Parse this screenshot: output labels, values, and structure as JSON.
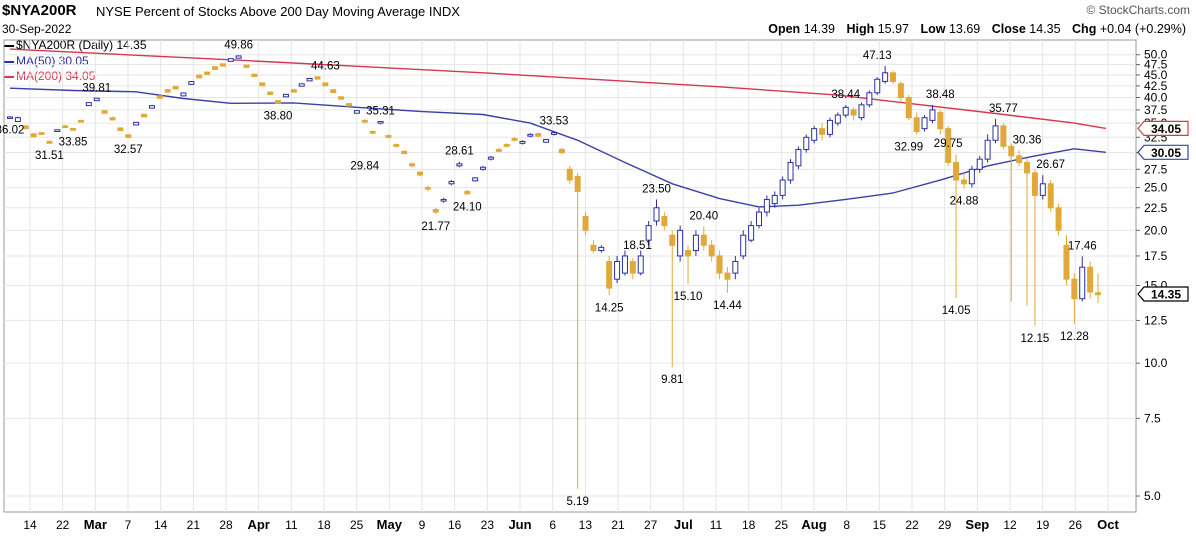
{
  "header": {
    "symbol": "$NYA200R",
    "description": "NYSE Percent of Stocks Above 200 Day Moving Average",
    "exchange": "INDX",
    "date": "30-Sep-2022",
    "brand": "© StockCharts.com",
    "open_label": "Open",
    "open": "14.39",
    "high_label": "High",
    "high": "15.97",
    "low_label": "Low",
    "low": "13.69",
    "close_label": "Close",
    "close": "14.35",
    "chg_label": "Chg",
    "chg": "+0.04 (+0.29%)"
  },
  "legend": {
    "main": "$NYA200R (Daily) 14.35",
    "ma50": "MA(50) 30.05",
    "ma200": "MA(200) 34.05"
  },
  "colors": {
    "up": "#2b2fa6",
    "down": "#e0a93a",
    "ma50": "#3b3fa8",
    "ma200": "#d6364f",
    "grid": "#e6e6e6"
  },
  "chart_data": {
    "type": "candlestick",
    "y_scale": "log",
    "ylim": [
      4.6,
      54
    ],
    "y_ticks": [
      "5.0",
      "7.5",
      "10.0",
      "12.5",
      "15.0",
      "17.5",
      "20.0",
      "22.5",
      "25.0",
      "27.5",
      "30.0",
      "32.5",
      "35.0",
      "37.5",
      "40.0",
      "42.5",
      "45.0",
      "47.5",
      "50.0"
    ],
    "x_ticks": [
      "14",
      "22",
      "Mar",
      "7",
      "14",
      "21",
      "28",
      "Apr",
      "11",
      "18",
      "25",
      "May",
      "9",
      "16",
      "23",
      "Jun",
      "6",
      "13",
      "21",
      "27",
      "Jul",
      "11",
      "18",
      "25",
      "Aug",
      "8",
      "15",
      "22",
      "29",
      "Sep",
      "12",
      "19",
      "26",
      "Oct"
    ],
    "x_ticks_bold": [
      "Mar",
      "Apr",
      "May",
      "Jun",
      "Jul",
      "Aug",
      "Sep",
      "Oct"
    ],
    "price_tags": [
      {
        "label": "34.05",
        "value": 34.05,
        "color": "#d6364f"
      },
      {
        "label": "30.05",
        "value": 30.05,
        "color": "#3b3fa8"
      },
      {
        "label": "14.35",
        "value": 14.35,
        "color": "#000000"
      }
    ],
    "annotations": [
      {
        "text": "36.02",
        "d": 0,
        "v": 36.02,
        "pos": "below"
      },
      {
        "text": "31.51",
        "d": 5,
        "v": 31.51,
        "pos": "below"
      },
      {
        "text": "33.85",
        "d": 8,
        "v": 33.85,
        "pos": "below"
      },
      {
        "text": "39.81",
        "d": 11,
        "v": 39.81,
        "pos": "above"
      },
      {
        "text": "32.57",
        "d": 15,
        "v": 32.57,
        "pos": "below"
      },
      {
        "text": "49.86",
        "d": 29,
        "v": 49.86,
        "pos": "above"
      },
      {
        "text": "44.63",
        "d": 40,
        "v": 44.63,
        "pos": "above"
      },
      {
        "text": "38.80",
        "d": 34,
        "v": 38.8,
        "pos": "below"
      },
      {
        "text": "35.31",
        "d": 47,
        "v": 35.31,
        "pos": "above"
      },
      {
        "text": "29.84",
        "d": 45,
        "v": 29.84,
        "pos": "below"
      },
      {
        "text": "28.61",
        "d": 57,
        "v": 28.61,
        "pos": "above"
      },
      {
        "text": "24.10",
        "d": 58,
        "v": 24.1,
        "pos": "below"
      },
      {
        "text": "21.77",
        "d": 54,
        "v": 21.77,
        "pos": "below"
      },
      {
        "text": "33.53",
        "d": 69,
        "v": 33.53,
        "pos": "above"
      },
      {
        "text": "5.19",
        "d": 72,
        "v": 5.19,
        "pos": "below"
      },
      {
        "text": "18.51",
        "d": 77,
        "v": 18.51,
        "pos": "right"
      },
      {
        "text": "14.25",
        "d": 76,
        "v": 14.25,
        "pos": "below"
      },
      {
        "text": "23.50",
        "d": 82,
        "v": 23.5,
        "pos": "above"
      },
      {
        "text": "9.81",
        "d": 84,
        "v": 9.81,
        "pos": "below"
      },
      {
        "text": "20.40",
        "d": 88,
        "v": 20.4,
        "pos": "above"
      },
      {
        "text": "15.10",
        "d": 86,
        "v": 15.1,
        "pos": "below"
      },
      {
        "text": "14.44",
        "d": 91,
        "v": 14.44,
        "pos": "below"
      },
      {
        "text": "47.13",
        "d": 110,
        "v": 47.13,
        "pos": "above"
      },
      {
        "text": "38.44",
        "d": 106,
        "v": 38.44,
        "pos": "above"
      },
      {
        "text": "38.48",
        "d": 118,
        "v": 38.48,
        "pos": "above"
      },
      {
        "text": "32.99",
        "d": 114,
        "v": 32.99,
        "pos": "below"
      },
      {
        "text": "29.75",
        "d": 119,
        "v": 29.75,
        "pos": "above"
      },
      {
        "text": "24.88",
        "d": 121,
        "v": 24.88,
        "pos": "below"
      },
      {
        "text": "35.77",
        "d": 126,
        "v": 35.77,
        "pos": "above"
      },
      {
        "text": "30.36",
        "d": 129,
        "v": 30.36,
        "pos": "above"
      },
      {
        "text": "14.05",
        "d": 120,
        "v": 14.05,
        "pos": "below"
      },
      {
        "text": "26.67",
        "d": 132,
        "v": 26.67,
        "pos": "above"
      },
      {
        "text": "12.15",
        "d": 130,
        "v": 12.15,
        "pos": "below"
      },
      {
        "text": "17.46",
        "d": 136,
        "v": 17.46,
        "pos": "above"
      },
      {
        "text": "12.28",
        "d": 135,
        "v": 12.28,
        "pos": "below"
      }
    ],
    "ma200": [
      [
        0,
        51.5
      ],
      [
        30,
        48.5
      ],
      [
        60,
        45.5
      ],
      [
        90,
        42.3
      ],
      [
        105,
        40.5
      ],
      [
        115,
        38.6
      ],
      [
        125,
        36.8
      ],
      [
        135,
        35.0
      ],
      [
        139,
        34.05
      ]
    ],
    "ma50": [
      [
        0,
        42.0
      ],
      [
        8,
        41.5
      ],
      [
        16,
        41.2
      ],
      [
        22,
        39.8
      ],
      [
        28,
        38.8
      ],
      [
        36,
        38.9
      ],
      [
        44,
        38.0
      ],
      [
        52,
        37.2
      ],
      [
        60,
        36.6
      ],
      [
        66,
        35.0
      ],
      [
        72,
        32.0
      ],
      [
        78,
        28.5
      ],
      [
        84,
        25.5
      ],
      [
        90,
        23.6
      ],
      [
        95,
        22.6
      ],
      [
        100,
        22.8
      ],
      [
        106,
        23.5
      ],
      [
        112,
        24.3
      ],
      [
        118,
        26.0
      ],
      [
        124,
        28.0
      ],
      [
        130,
        29.5
      ],
      [
        135,
        30.6
      ],
      [
        139,
        30.05
      ]
    ],
    "candles": [
      [
        0,
        36.0,
        36.0,
        36.3,
        35.8
      ],
      [
        1,
        35.3,
        36.0,
        36.2,
        35.2
      ],
      [
        2,
        34.5,
        34.0,
        34.6,
        33.9
      ],
      [
        3,
        33.1,
        32.6,
        33.2,
        32.5
      ],
      [
        4,
        33.3,
        33.0,
        33.4,
        32.9
      ],
      [
        5,
        31.8,
        31.5,
        32.0,
        31.5
      ],
      [
        6,
        33.5,
        33.8,
        33.9,
        33.4
      ],
      [
        7,
        34.5,
        34.2,
        34.7,
        34.1
      ],
      [
        8,
        33.9,
        33.85,
        34.1,
        33.85
      ],
      [
        9,
        35.5,
        35.2,
        35.6,
        35.1
      ],
      [
        10,
        38.5,
        38.8,
        39.0,
        38.4
      ],
      [
        11,
        39.5,
        39.7,
        39.81,
        39.4
      ],
      [
        12,
        37.2,
        37.0,
        37.4,
        36.9
      ],
      [
        13,
        36.0,
        35.6,
        36.2,
        35.5
      ],
      [
        14,
        34.0,
        33.8,
        34.2,
        33.7
      ],
      [
        15,
        32.8,
        32.6,
        33.0,
        32.57
      ],
      [
        16,
        34.8,
        35.0,
        35.2,
        34.7
      ],
      [
        17,
        36.5,
        36.3,
        36.7,
        36.2
      ],
      [
        18,
        38.0,
        38.2,
        38.4,
        37.9
      ],
      [
        19,
        40.2,
        40.0,
        40.5,
        39.8
      ],
      [
        20,
        41.5,
        41.3,
        41.8,
        41.2
      ],
      [
        21,
        42.2,
        42.0,
        42.5,
        41.9
      ],
      [
        22,
        40.5,
        40.8,
        41.0,
        40.3
      ],
      [
        23,
        43.0,
        43.3,
        43.6,
        42.8
      ],
      [
        24,
        44.8,
        44.5,
        45.1,
        44.3
      ],
      [
        25,
        45.5,
        45.3,
        45.8,
        45.2
      ],
      [
        26,
        46.8,
        46.5,
        47.0,
        46.3
      ],
      [
        27,
        47.5,
        47.3,
        47.8,
        47.1
      ],
      [
        28,
        48.5,
        48.8,
        49.0,
        48.3
      ],
      [
        29,
        49.3,
        49.5,
        49.86,
        49.1
      ],
      [
        30,
        47.2,
        47.0,
        47.5,
        46.9
      ],
      [
        31,
        45.0,
        44.8,
        45.3,
        44.6
      ],
      [
        32,
        43.0,
        42.7,
        43.2,
        42.6
      ],
      [
        33,
        41.0,
        40.8,
        41.2,
        40.6
      ],
      [
        34,
        39.2,
        39.0,
        39.4,
        38.8
      ],
      [
        35,
        40.3,
        40.5,
        40.7,
        40.2
      ],
      [
        36,
        41.5,
        41.3,
        41.8,
        41.1
      ],
      [
        37,
        42.6,
        42.8,
        43.0,
        42.4
      ],
      [
        38,
        43.8,
        44.0,
        44.2,
        43.6
      ],
      [
        39,
        44.4,
        44.2,
        44.63,
        44.0
      ],
      [
        40,
        43.0,
        42.7,
        43.2,
        42.5
      ],
      [
        41,
        41.5,
        41.2,
        41.7,
        41.0
      ],
      [
        42,
        40.0,
        39.8,
        40.2,
        39.6
      ],
      [
        43,
        38.6,
        38.4,
        38.8,
        38.2
      ],
      [
        44,
        37.0,
        37.2,
        37.4,
        36.8
      ],
      [
        45,
        35.5,
        35.2,
        35.7,
        35.0
      ],
      [
        46,
        33.5,
        33.2,
        33.7,
        33.0
      ],
      [
        47,
        35.0,
        35.3,
        35.31,
        34.8
      ],
      [
        48,
        32.8,
        32.5,
        33.0,
        32.3
      ],
      [
        49,
        31.3,
        31.0,
        31.5,
        30.8
      ],
      [
        50,
        30.2,
        29.84,
        30.4,
        29.84
      ],
      [
        51,
        28.3,
        28.0,
        28.5,
        27.8
      ],
      [
        52,
        27.0,
        26.8,
        27.2,
        26.5
      ],
      [
        53,
        25.0,
        24.8,
        25.3,
        24.5
      ],
      [
        54,
        22.3,
        22.0,
        22.5,
        21.77
      ],
      [
        55,
        23.3,
        23.5,
        23.7,
        23.1
      ],
      [
        56,
        25.5,
        25.8,
        26.0,
        25.3
      ],
      [
        57,
        28.0,
        28.3,
        28.61,
        27.8
      ],
      [
        58,
        24.5,
        24.2,
        24.7,
        24.1
      ],
      [
        59,
        26.0,
        26.2,
        26.4,
        25.8
      ],
      [
        60,
        27.5,
        27.8,
        28.0,
        27.3
      ],
      [
        61,
        29.0,
        29.3,
        29.5,
        28.8
      ],
      [
        62,
        30.5,
        30.2,
        30.8,
        30.0
      ],
      [
        63,
        31.3,
        31.0,
        31.5,
        30.8
      ],
      [
        64,
        32.3,
        32.0,
        32.5,
        31.8
      ],
      [
        65,
        31.5,
        31.8,
        32.0,
        31.3
      ],
      [
        66,
        32.7,
        33.0,
        33.2,
        32.5
      ],
      [
        67,
        33.0,
        32.8,
        33.3,
        32.6
      ],
      [
        68,
        31.8,
        32.0,
        32.2,
        31.6
      ],
      [
        69,
        33.0,
        33.3,
        33.53,
        32.8
      ],
      [
        70,
        30.5,
        30.0,
        30.8,
        29.8
      ],
      [
        71,
        27.5,
        26.0,
        28.0,
        25.5
      ],
      [
        72,
        26.5,
        24.5,
        27.0,
        5.19
      ],
      [
        73,
        21.5,
        20.0,
        22.0,
        19.5
      ],
      [
        74,
        18.5,
        18.0,
        19.0,
        17.8
      ],
      [
        75,
        18.0,
        18.3,
        18.51,
        17.8
      ],
      [
        76,
        17.0,
        14.8,
        17.5,
        14.25
      ],
      [
        77,
        15.5,
        17.0,
        17.5,
        15.2
      ],
      [
        78,
        16.0,
        17.5,
        18.0,
        15.8
      ],
      [
        79,
        17.0,
        16.0,
        17.3,
        15.5
      ],
      [
        80,
        16.0,
        17.5,
        18.0,
        15.8
      ],
      [
        81,
        19.0,
        20.5,
        21.0,
        18.5
      ],
      [
        82,
        21.0,
        22.5,
        23.5,
        20.5
      ],
      [
        83,
        21.5,
        20.5,
        22.0,
        20.0
      ],
      [
        84,
        19.5,
        18.5,
        20.0,
        9.81
      ],
      [
        85,
        17.5,
        20.0,
        20.5,
        17.0
      ],
      [
        86,
        18.0,
        17.5,
        18.5,
        15.1
      ],
      [
        87,
        18.0,
        19.5,
        20.0,
        17.5
      ],
      [
        88,
        19.5,
        18.5,
        20.4,
        18.0
      ],
      [
        89,
        18.5,
        17.5,
        19.0,
        17.0
      ],
      [
        90,
        17.5,
        16.0,
        18.0,
        15.5
      ],
      [
        91,
        16.0,
        15.5,
        16.5,
        14.44
      ],
      [
        92,
        16.0,
        17.0,
        17.5,
        15.5
      ],
      [
        93,
        17.5,
        19.5,
        20.0,
        17.2
      ],
      [
        94,
        19.0,
        20.5,
        21.0,
        18.8
      ],
      [
        95,
        20.5,
        22.0,
        22.5,
        20.2
      ],
      [
        96,
        22.0,
        23.5,
        24.0,
        21.5
      ],
      [
        97,
        23.0,
        24.0,
        24.5,
        22.5
      ],
      [
        98,
        24.0,
        26.0,
        26.5,
        23.5
      ],
      [
        99,
        26.0,
        28.5,
        29.0,
        25.5
      ],
      [
        100,
        28.0,
        30.5,
        31.0,
        27.5
      ],
      [
        101,
        30.5,
        32.5,
        33.0,
        30.0
      ],
      [
        102,
        32.0,
        34.0,
        34.5,
        31.5
      ],
      [
        103,
        34.0,
        33.0,
        35.0,
        32.0
      ],
      [
        104,
        33.0,
        35.5,
        36.0,
        32.5
      ],
      [
        105,
        35.0,
        36.5,
        37.0,
        34.5
      ],
      [
        106,
        36.5,
        38.0,
        38.44,
        36.0
      ],
      [
        107,
        37.5,
        36.5,
        38.0,
        35.5
      ],
      [
        108,
        36.0,
        38.5,
        39.0,
        35.5
      ],
      [
        109,
        38.5,
        41.0,
        41.5,
        38.0
      ],
      [
        110,
        41.0,
        44.0,
        44.5,
        40.5
      ],
      [
        111,
        43.5,
        45.5,
        47.13,
        43.0
      ],
      [
        112,
        45.5,
        43.5,
        46.0,
        43.0
      ],
      [
        113,
        43.0,
        40.0,
        43.5,
        39.0
      ],
      [
        114,
        40.0,
        36.0,
        40.5,
        35.5
      ],
      [
        115,
        36.0,
        33.5,
        37.0,
        32.99
      ],
      [
        116,
        34.0,
        36.0,
        36.5,
        33.5
      ],
      [
        117,
        35.5,
        37.5,
        38.48,
        35.0
      ],
      [
        118,
        37.0,
        34.0,
        37.5,
        33.0
      ],
      [
        119,
        34.0,
        28.5,
        34.5,
        28.0
      ],
      [
        120,
        28.5,
        26.0,
        29.75,
        14.05
      ],
      [
        121,
        26.0,
        25.5,
        27.0,
        24.88
      ],
      [
        122,
        25.5,
        27.5,
        28.0,
        25.0
      ],
      [
        123,
        27.5,
        29.0,
        29.5,
        27.0
      ],
      [
        124,
        29.0,
        32.0,
        33.0,
        28.5
      ],
      [
        125,
        32.0,
        34.5,
        35.77,
        31.5
      ],
      [
        126,
        34.5,
        31.0,
        35.0,
        30.5
      ],
      [
        127,
        31.0,
        29.5,
        31.5,
        13.8
      ],
      [
        128,
        29.5,
        28.5,
        30.36,
        28.0
      ],
      [
        129,
        28.5,
        27.0,
        29.0,
        13.5
      ],
      [
        130,
        27.0,
        24.0,
        27.5,
        12.15
      ],
      [
        131,
        24.0,
        25.5,
        26.67,
        23.5
      ],
      [
        132,
        25.5,
        22.5,
        26.0,
        22.0
      ],
      [
        133,
        22.5,
        20.0,
        23.0,
        19.5
      ],
      [
        134,
        18.5,
        15.5,
        19.5,
        15.0
      ],
      [
        135,
        15.5,
        14.0,
        16.0,
        12.28
      ],
      [
        136,
        14.0,
        16.5,
        17.46,
        13.8
      ],
      [
        137,
        16.5,
        14.5,
        17.0,
        14.0
      ],
      [
        138,
        14.39,
        14.35,
        15.97,
        13.69
      ]
    ]
  }
}
